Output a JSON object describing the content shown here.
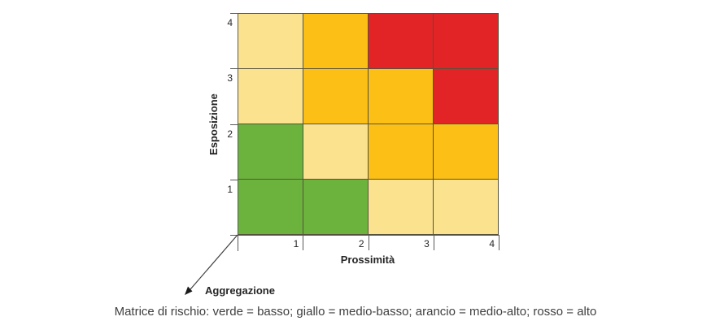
{
  "chart_data": {
    "type": "heatmap",
    "title": "",
    "xlabel": "Prossimità",
    "ylabel": "Esposizione",
    "x_ticks": [
      "1",
      "2",
      "3",
      "4"
    ],
    "y_ticks": [
      "4",
      "3",
      "2",
      "1"
    ],
    "x_range": [
      0,
      4
    ],
    "y_range": [
      0,
      4
    ],
    "grid": true,
    "legend_position": "none",
    "rows_top_to_bottom": [
      {
        "esposizione": 4,
        "levels": [
          "medio-basso",
          "medio-alto",
          "alto",
          "alto"
        ]
      },
      {
        "esposizione": 3,
        "levels": [
          "medio-basso",
          "medio-alto",
          "medio-alto",
          "alto"
        ]
      },
      {
        "esposizione": 2,
        "levels": [
          "basso",
          "medio-basso",
          "medio-alto",
          "medio-alto"
        ]
      },
      {
        "esposizione": 1,
        "levels": [
          "basso",
          "basso",
          "medio-basso",
          "medio-basso"
        ]
      }
    ],
    "level_colors": {
      "basso": "#6CB33E",
      "medio-basso": "#FBE28F",
      "medio-alto": "#FBBF16",
      "alto": "#E32426"
    }
  },
  "annotations": {
    "aggregation_label": "Aggregazione"
  },
  "caption": {
    "text": "Matrice di rischio: verde = basso; giallo = medio-basso; arancio = medio-alto; rosso = alto"
  },
  "colors": {
    "green": "#6CB33E",
    "yellow": "#FBE28F",
    "orange": "#FBBF16",
    "red": "#E32426",
    "axis": "#595959",
    "cell_border": "#55523E",
    "text": "#262626"
  }
}
